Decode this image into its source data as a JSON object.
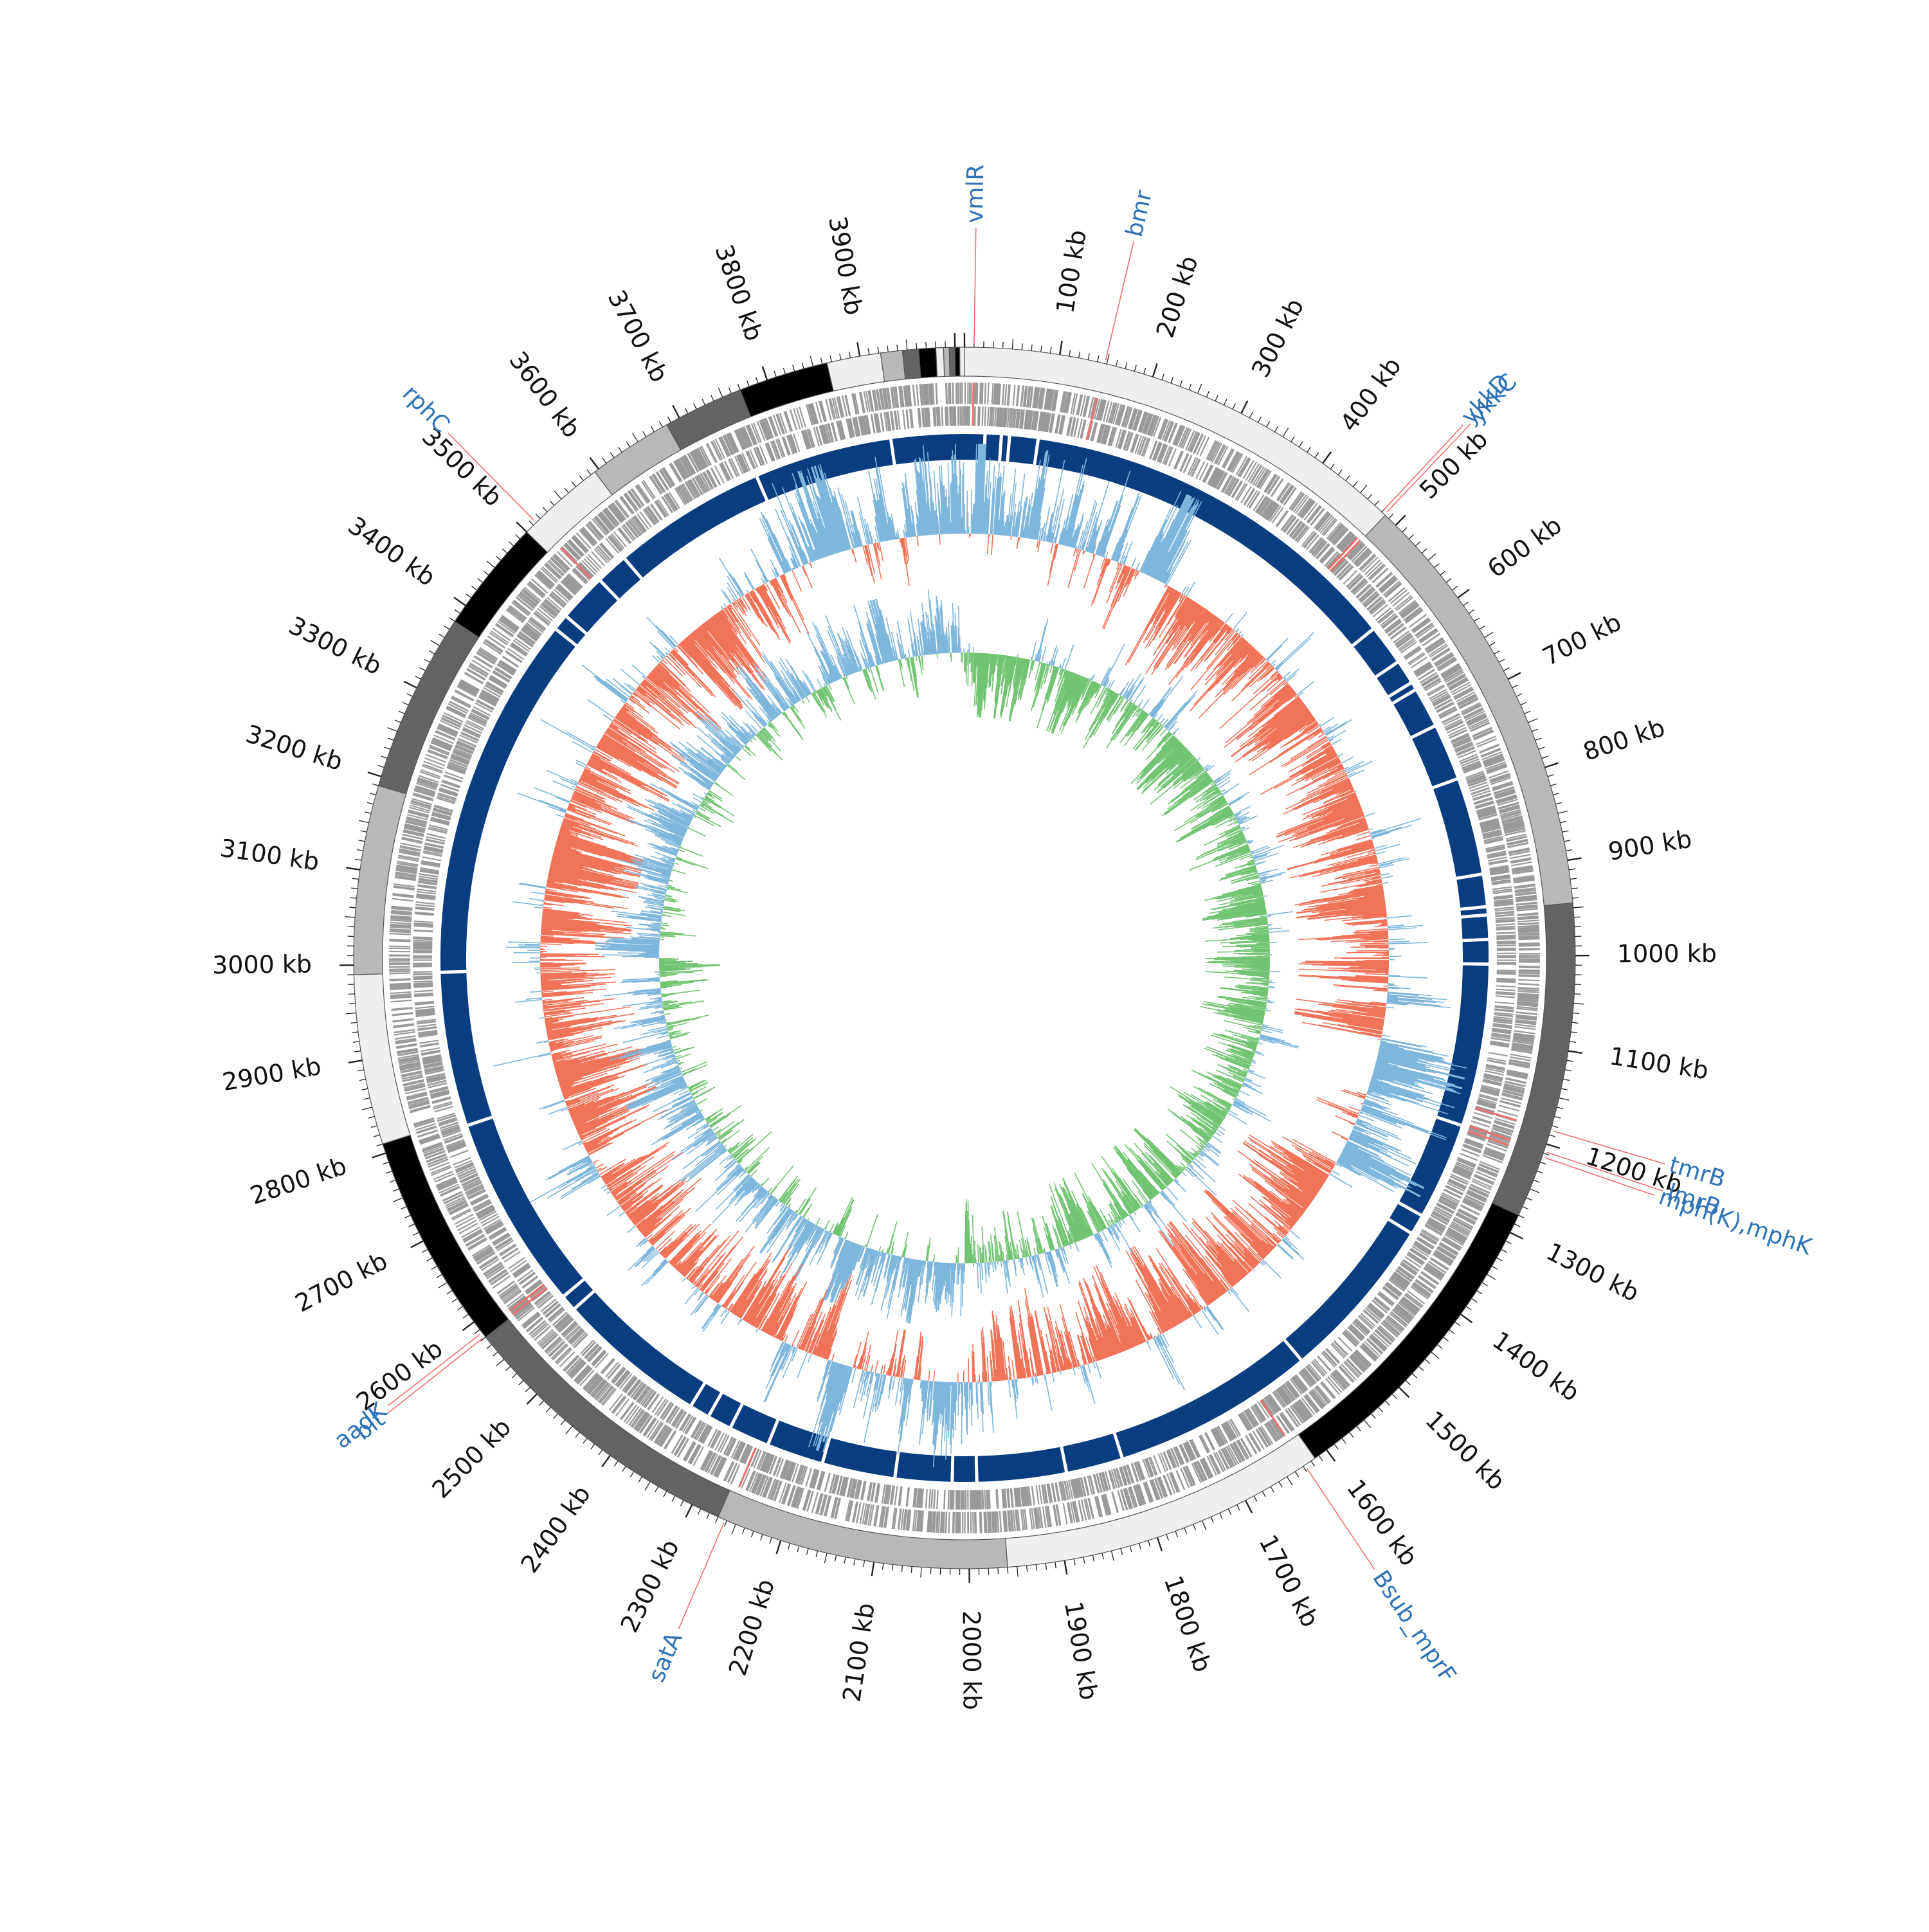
{
  "genome": {
    "length_kb": 4010,
    "tick_major_step_kb": 100,
    "tick_minor_step_kb": 10,
    "tick_label_suffix": " kb",
    "tick_labels": [
      "100 kb",
      "200 kb",
      "300 kb",
      "400 kb",
      "500 kb",
      "600 kb",
      "700 kb",
      "800 kb",
      "900 kb",
      "1000 kb",
      "1100 kb",
      "1200 kb",
      "1300 kb",
      "1400 kb",
      "1500 kb",
      "1600 kb",
      "1700 kb",
      "1800 kb",
      "1900 kb",
      "2000 kb",
      "2100 kb",
      "2200 kb",
      "2300 kb",
      "2400 kb",
      "2500 kb",
      "2600 kb",
      "2700 kb",
      "2800 kb",
      "2900 kb",
      "3000 kb",
      "3100 kb",
      "3200 kb",
      "3300 kb",
      "3400 kb",
      "3500 kb",
      "3600 kb",
      "3700 kb",
      "3800 kb",
      "3900 kb"
    ]
  },
  "colors": {
    "contig_palette": [
      "#efefef",
      "#b8b8b8",
      "#636363",
      "#000000"
    ],
    "cds": "#9a9a9a",
    "cds_highlight": "#ef6f6c",
    "blast_band": "#0a3d80",
    "gc_content_pos": "#7eb6dc",
    "gc_content_neg": "#f0735a",
    "gc_skew_pos": "#72c472",
    "gc_skew_neg": "#7eb6dc",
    "gene_label": "#2f72b5",
    "gene_leader": "#ef6f6c",
    "tick": "#222222"
  },
  "contigs_kb": [
    [
      0,
      485
    ],
    [
      485,
      945
    ],
    [
      945,
      1280
    ],
    [
      1280,
      1615
    ],
    [
      1615,
      1960
    ],
    [
      1960,
      2270
    ],
    [
      2270,
      2580
    ],
    [
      2580,
      2810
    ],
    [
      2810,
      2990
    ],
    [
      2990,
      3190
    ],
    [
      3190,
      3380
    ],
    [
      3380,
      3500
    ],
    [
      3500,
      3595
    ],
    [
      3595,
      3685
    ],
    [
      3685,
      3770
    ],
    [
      3770,
      3865
    ],
    [
      3865,
      3922
    ],
    [
      3922,
      3945
    ],
    [
      3945,
      3962
    ],
    [
      3962,
      3980
    ],
    [
      3980,
      3988
    ],
    [
      3988,
      3994
    ],
    [
      3994,
      4000
    ],
    [
      4000,
      4005
    ],
    [
      4005,
      4010
    ]
  ],
  "contig_color_index": [
    0,
    1,
    2,
    3,
    0,
    1,
    2,
    3,
    0,
    1,
    2,
    3,
    0,
    1,
    2,
    3,
    0,
    1,
    2,
    3,
    0,
    1,
    2,
    3,
    0
  ],
  "blast_gaps_kb": [
    25,
    45,
    55,
    90,
    570,
    620,
    650,
    660,
    710,
    780,
    900,
    940,
    950,
    980,
    1010,
    1210,
    1330,
    1355,
    1560,
    1810,
    1880,
    1990,
    2020,
    2090,
    2180,
    2250,
    2300,
    2330,
    2355,
    2540,
    2560,
    2800,
    2990,
    3440,
    3460,
    3520,
    3560,
    3750,
    3920
  ],
  "gene_labels": [
    {
      "name": "vmlR",
      "kb": 10
    },
    {
      "name": "bmr",
      "kb": 148
    },
    {
      "name": "ykkD",
      "kb": 480
    },
    {
      "name": "ykkC",
      "kb": 484
    },
    {
      "name": "tmrB",
      "kb": 1185
    },
    {
      "name": "lmrB",
      "kb": 1208
    },
    {
      "name": "mph(K),mphK",
      "kb": 1214
    },
    {
      "name": "Bsub_mprF",
      "kb": 1628
    },
    {
      "name": "satA",
      "kb": 2262
    },
    {
      "name": "blt",
      "kb": 2581
    },
    {
      "name": "aadK",
      "kb": 2586
    },
    {
      "name": "rphC",
      "kb": 3514
    }
  ]
}
